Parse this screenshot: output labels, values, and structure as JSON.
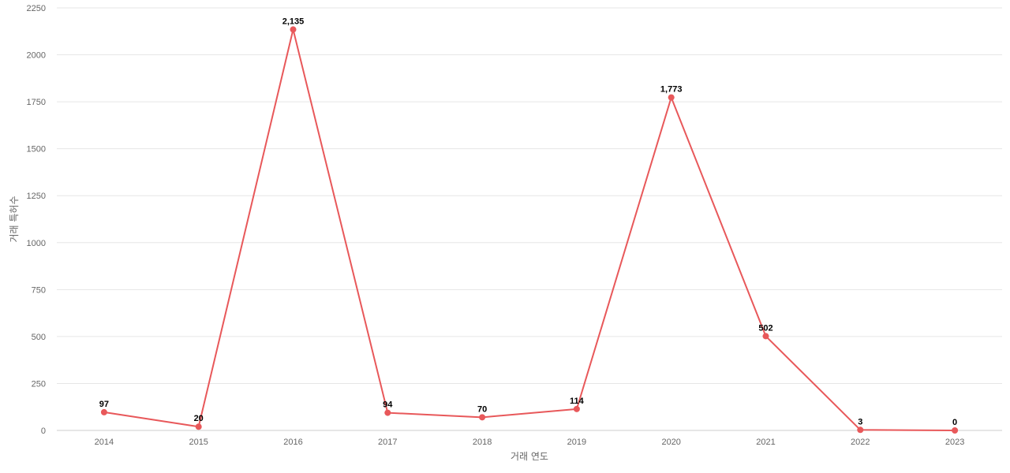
{
  "chart_data": {
    "type": "line",
    "title": "",
    "xlabel": "거래 연도",
    "ylabel": "거래 특허수",
    "categories": [
      "2014",
      "2015",
      "2016",
      "2017",
      "2018",
      "2019",
      "2020",
      "2021",
      "2022",
      "2023"
    ],
    "series": [
      {
        "values": [
          97,
          20,
          2135,
          94,
          70,
          114,
          1773,
          502,
          3,
          0
        ],
        "data_labels": [
          "97",
          "20",
          "2,135",
          "94",
          "70",
          "114",
          "1,773",
          "502",
          "3",
          "0"
        ]
      }
    ],
    "ylim": [
      0,
      2250
    ],
    "yticks": [
      0,
      250,
      500,
      750,
      1000,
      1250,
      1500,
      1750,
      2000,
      2250
    ],
    "grid": true,
    "legend": "none",
    "colors": {
      "series": "#e8585a",
      "grid": "#e6e6e6",
      "axis": "#cccccc"
    }
  }
}
